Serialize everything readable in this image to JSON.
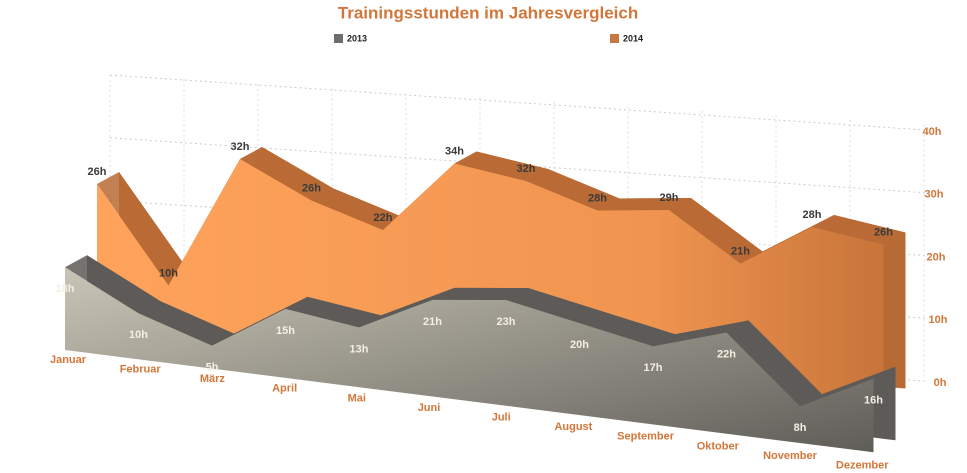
{
  "chart_data": {
    "type": "area3d",
    "title": "Trainingsstunden im Jahresvergleich",
    "categories": [
      "Januar",
      "Februar",
      "März",
      "April",
      "Mai",
      "Juni",
      "Juli",
      "August",
      "September",
      "Oktober",
      "November",
      "Dezember"
    ],
    "series": [
      {
        "name": "2013",
        "color": "#8d8a84",
        "values": [
          18,
          10,
          5,
          15,
          13,
          21,
          23,
          20,
          17,
          22,
          8,
          16
        ],
        "value_labels": [
          "18h",
          "10h",
          "5h",
          "15h",
          "13h",
          "21h",
          "23h",
          "20h",
          "17h",
          "22h",
          "8h",
          "16h"
        ]
      },
      {
        "name": "2014",
        "color": "#f29a55",
        "values": [
          26,
          10,
          32,
          26,
          22,
          34,
          32,
          28,
          29,
          21,
          28,
          26
        ],
        "value_labels": [
          "26h",
          "10h",
          "32h",
          "26h",
          "22h",
          "34h",
          "32h",
          "28h",
          "29h",
          "21h",
          "28h",
          "26h"
        ]
      }
    ],
    "ylim": [
      0,
      40
    ],
    "yticks": [
      {
        "value": 0,
        "label": "0h"
      },
      {
        "value": 10,
        "label": "10h"
      },
      {
        "value": 20,
        "label": "20h"
      },
      {
        "value": 30,
        "label": "30h"
      },
      {
        "value": 40,
        "label": "40h"
      }
    ],
    "grid": true,
    "legend": "top"
  }
}
